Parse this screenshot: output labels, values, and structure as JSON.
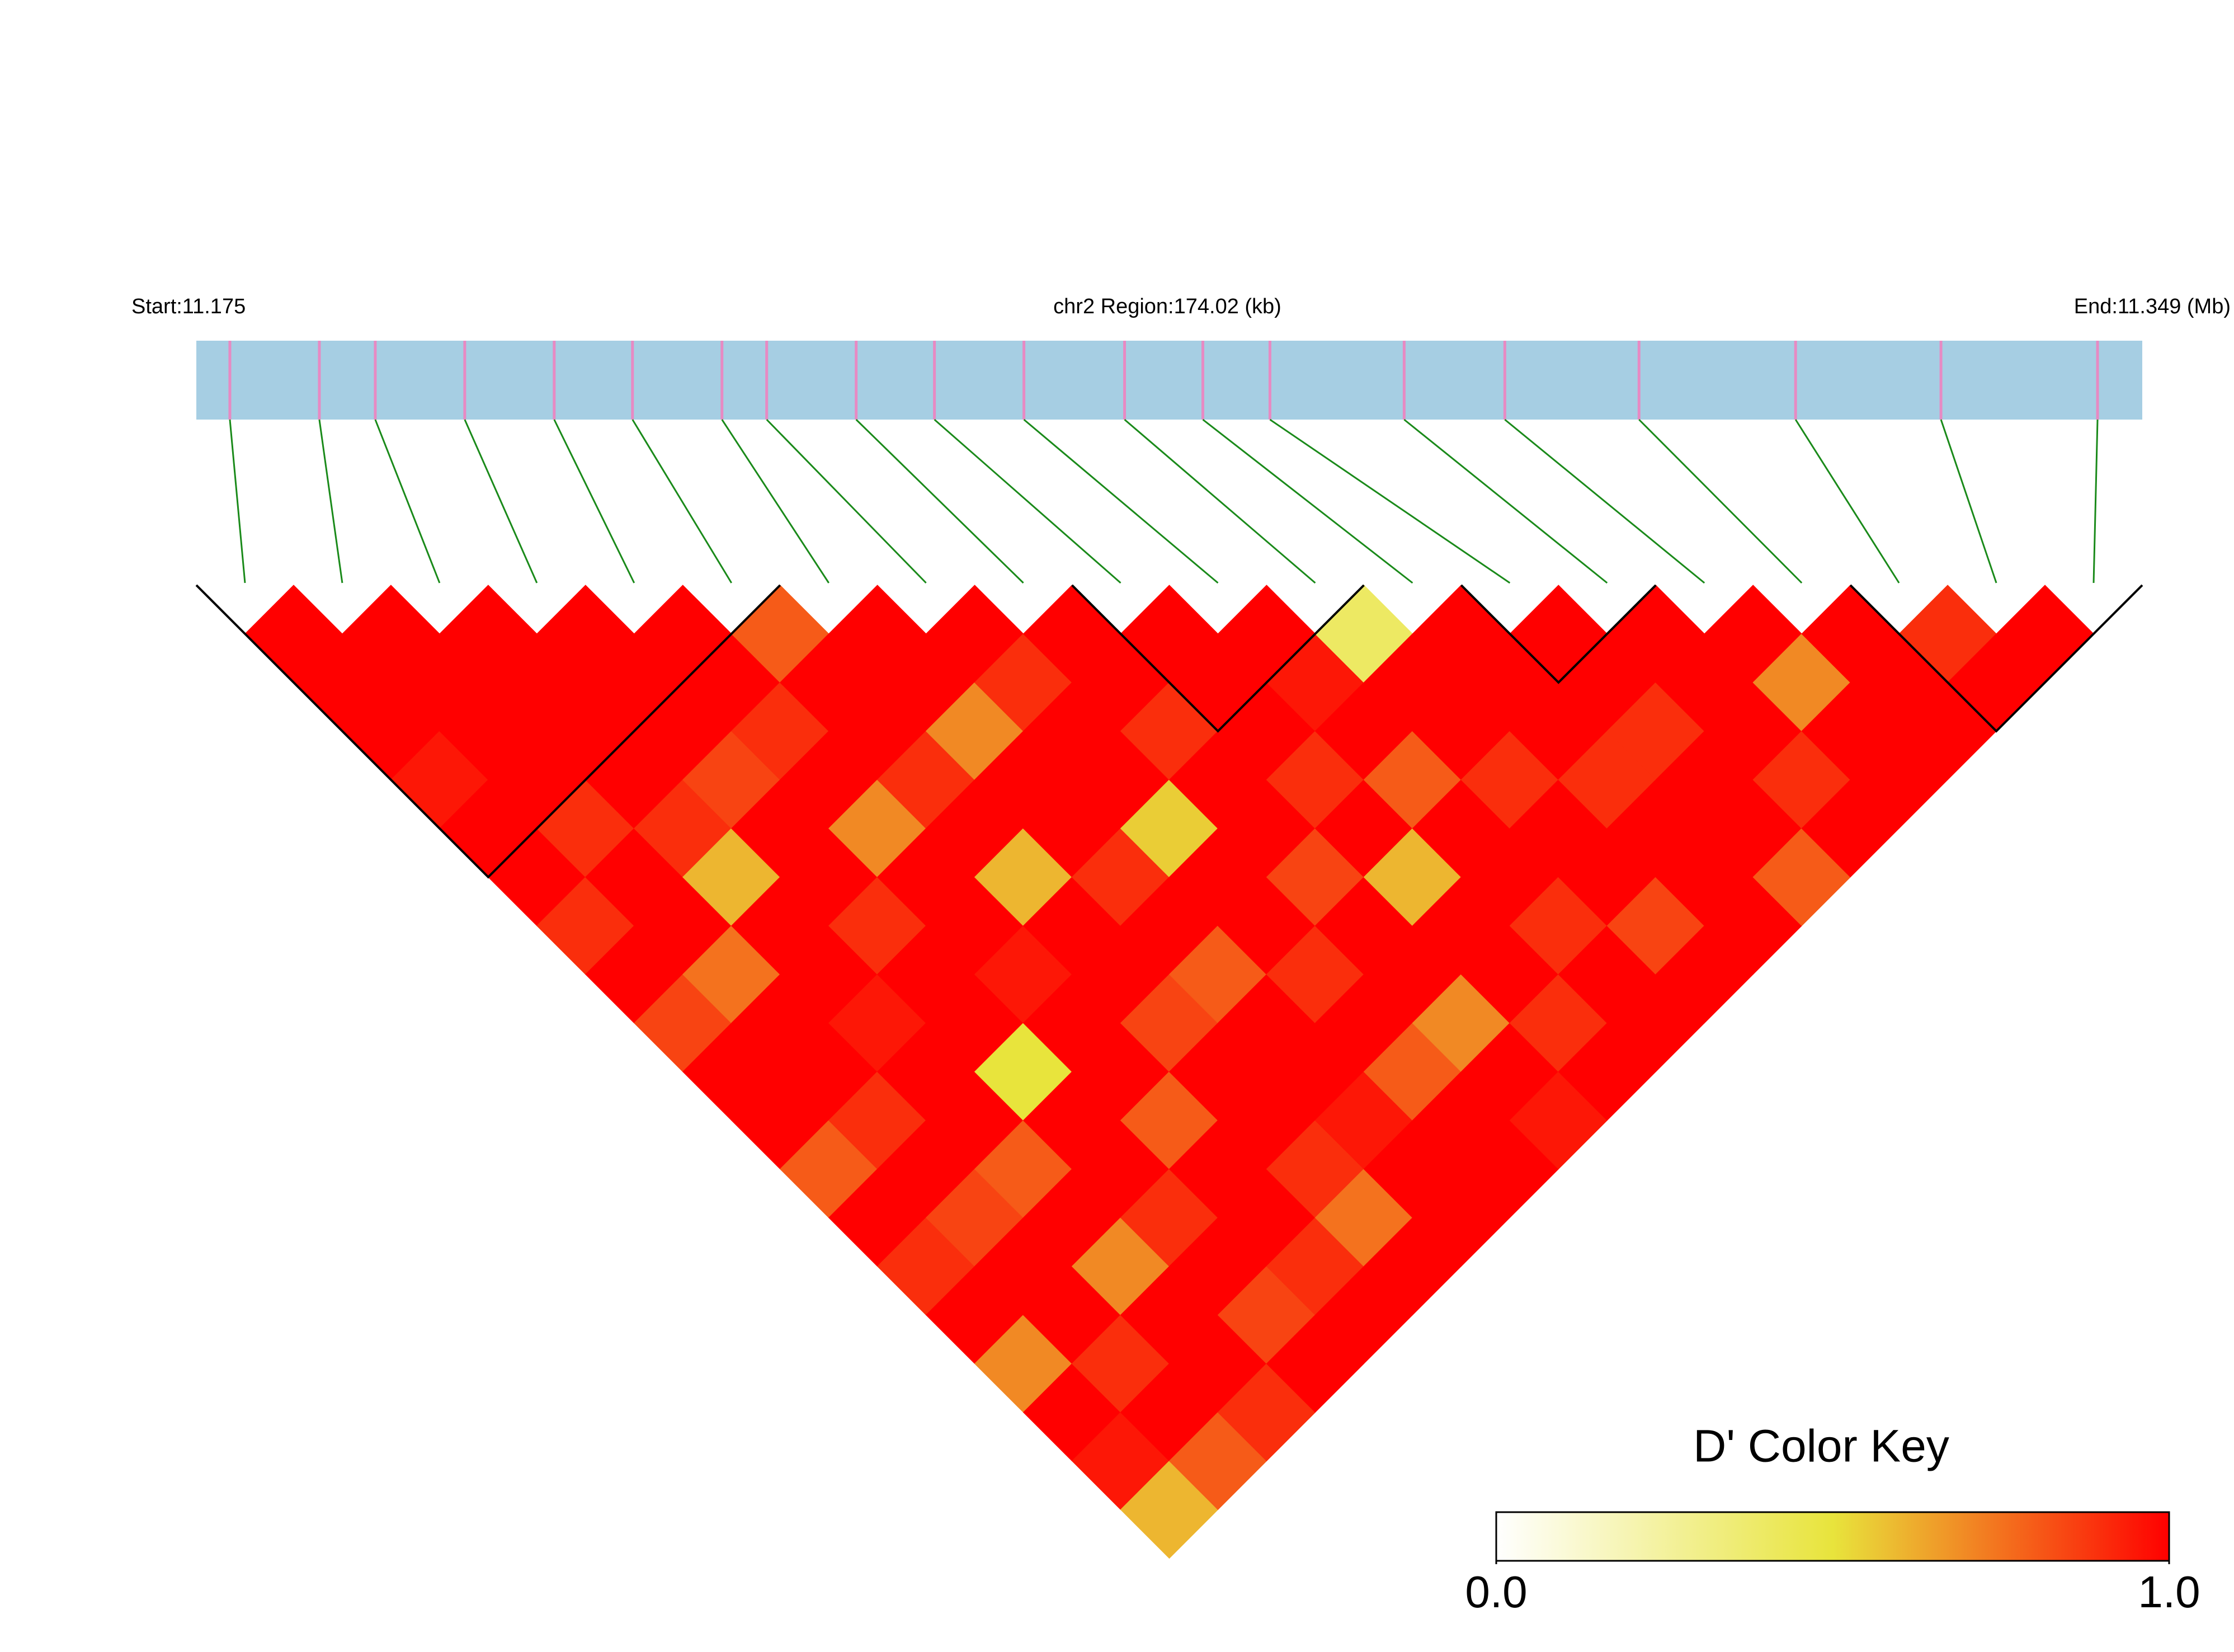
{
  "chart_data": {
    "type": "ld-heatmap",
    "start_label": "Start:11.175",
    "region_label": "chr2 Region:174.02 (kb)",
    "end_label": "End:11.349 (Mb)",
    "xlim": [
      11.175,
      11.349
    ],
    "positions": [
      11.178,
      11.186,
      11.191,
      11.199,
      11.207,
      11.214,
      11.222,
      11.226,
      11.234,
      11.241,
      11.249,
      11.258,
      11.265,
      11.271,
      11.283,
      11.292,
      11.304,
      11.318,
      11.331,
      11.345
    ],
    "ld": [
      [
        1,
        1,
        1,
        0.95,
        1,
        1,
        0.9,
        1,
        0.85,
        1,
        1,
        0.8,
        1,
        0.9,
        1,
        0.7,
        1,
        0.95,
        0.6
      ],
      [
        1,
        1,
        1,
        1,
        0.9,
        1,
        1,
        0.75,
        1,
        1,
        0.9,
        1,
        0.85,
        1,
        1,
        0.9,
        1,
        0.8
      ],
      [
        1,
        1,
        1,
        1,
        0.9,
        0.6,
        1,
        1,
        0.95,
        1,
        1,
        0.8,
        1,
        0.7,
        1,
        1,
        0.9
      ],
      [
        1,
        1,
        1,
        0.85,
        1,
        1,
        0.9,
        1,
        1,
        0.5,
        1,
        1,
        0.9,
        1,
        0.85,
        1
      ],
      [
        1,
        1,
        0.9,
        1,
        0.7,
        1,
        1,
        0.95,
        1,
        1,
        0.8,
        1,
        1,
        0.9,
        1
      ],
      [
        0.8,
        1,
        1,
        0.9,
        1,
        0.6,
        1,
        1,
        0.85,
        1,
        1,
        0.9,
        0.75,
        1
      ],
      [
        1,
        1,
        0.7,
        1,
        1,
        0.9,
        1,
        0.8,
        1,
        1,
        0.95,
        1,
        1
      ],
      [
        1,
        0.9,
        1,
        1,
        0.55,
        1,
        1,
        0.9,
        1,
        0.8,
        1,
        1
      ],
      [
        1,
        1,
        0.9,
        1,
        1,
        0.85,
        1,
        1,
        0.7,
        1,
        0.95
      ],
      [
        1,
        1,
        1,
        0.9,
        1,
        0.6,
        1,
        1,
        0.9,
        1
      ],
      [
        1,
        0.95,
        1,
        0.8,
        1,
        1,
        0.9,
        1,
        1
      ],
      [
        0.4,
        1,
        1,
        0.9,
        1,
        1,
        0.85,
        1
      ],
      [
        1,
        1,
        1,
        0.9,
        1,
        1,
        1
      ],
      [
        1,
        1,
        0.9,
        1,
        1,
        0.8
      ],
      [
        1,
        1,
        1,
        0.9,
        1
      ],
      [
        1,
        0.7,
        1,
        1
      ],
      [
        1,
        1,
        1
      ],
      [
        0.9,
        1
      ],
      [
        1
      ]
    ],
    "blocks": [
      [
        0,
        5
      ],
      [
        9,
        11
      ],
      [
        13,
        14
      ],
      [
        17,
        19
      ]
    ],
    "color_scale": [
      "#ffffff",
      "#e8e43c",
      "#ff0000"
    ],
    "key_title": "D' Color Key",
    "clim": [
      0,
      1
    ],
    "key_ticks": [
      {
        "value": 0,
        "label": "0.0"
      },
      {
        "value": 1,
        "label": "1.0"
      }
    ],
    "bar_color": "#a6cee3",
    "snp_color": "#e78ac3",
    "link_color": "#1a8a1a"
  }
}
